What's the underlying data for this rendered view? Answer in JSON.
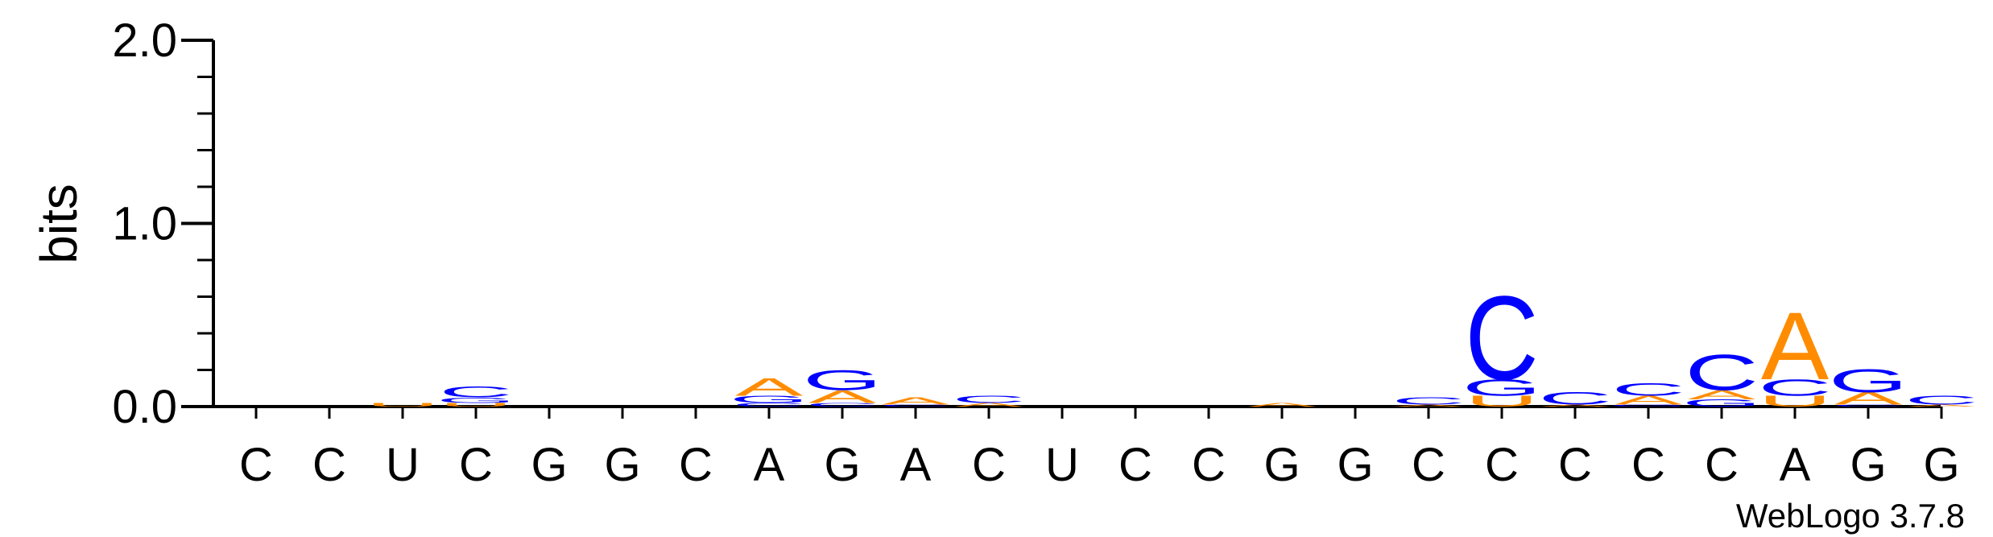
{
  "chart_data": {
    "type": "sequence-logo",
    "ylabel": "bits",
    "ylim": [
      0,
      2.0
    ],
    "yticks": [
      "0.0",
      "1.0",
      "2.0"
    ],
    "xlabels": [
      "C",
      "C",
      "U",
      "C",
      "G",
      "G",
      "C",
      "A",
      "G",
      "A",
      "C",
      "U",
      "C",
      "C",
      "G",
      "G",
      "C",
      "C",
      "C",
      "C",
      "C",
      "A",
      "G",
      "G"
    ],
    "colors": {
      "A": "#ff8c00",
      "C": "#0000ff",
      "G": "#0000ff",
      "U": "#ff8c00"
    },
    "columns": [
      [],
      [],
      [
        [
          "U",
          0.02
        ]
      ],
      [
        [
          "U",
          0.02
        ],
        [
          "G",
          0.03
        ],
        [
          "C",
          0.06
        ]
      ],
      [],
      [],
      [],
      [
        [
          "C",
          0.02
        ],
        [
          "G",
          0.04
        ],
        [
          "A",
          0.1
        ]
      ],
      [
        [
          "C",
          0.02
        ],
        [
          "A",
          0.07
        ],
        [
          "G",
          0.11
        ]
      ],
      [
        [
          "C",
          0.01
        ],
        [
          "A",
          0.04
        ]
      ],
      [
        [
          "A",
          0.02
        ],
        [
          "C",
          0.04
        ]
      ],
      [],
      [],
      [],
      [
        [
          "A",
          0.02
        ]
      ],
      [],
      [
        [
          "A",
          0.01
        ],
        [
          "C",
          0.04
        ]
      ],
      [
        [
          "U",
          0.06
        ],
        [
          "G",
          0.09
        ],
        [
          "C",
          0.47
        ]
      ],
      [
        [
          "A",
          0.01
        ],
        [
          "C",
          0.07
        ]
      ],
      [
        [
          "G",
          0.01
        ],
        [
          "A",
          0.05
        ],
        [
          "C",
          0.07
        ]
      ],
      [
        [
          "G",
          0.04
        ],
        [
          "A",
          0.05
        ],
        [
          "C",
          0.2
        ]
      ],
      [
        [
          "U",
          0.06
        ],
        [
          "C",
          0.09
        ],
        [
          "A",
          0.38
        ]
      ],
      [
        [
          "C",
          0.01
        ],
        [
          "A",
          0.07
        ],
        [
          "G",
          0.13
        ]
      ],
      [
        [
          "A",
          0.01
        ],
        [
          "C",
          0.05
        ]
      ]
    ]
  },
  "credit": "WebLogo 3.7.8"
}
